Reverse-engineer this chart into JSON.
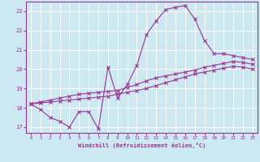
{
  "xlabel": "Windchill (Refroidissement éolien,°C)",
  "background_color": "#cce8f0",
  "grid_color": "#ffffff",
  "line_color": "#993399",
  "xlim": [
    -0.5,
    23.5
  ],
  "ylim": [
    16.7,
    23.5
  ],
  "yticks": [
    17,
    18,
    19,
    20,
    21,
    22,
    23
  ],
  "xticks": [
    0,
    1,
    2,
    3,
    4,
    5,
    6,
    7,
    8,
    9,
    10,
    11,
    12,
    13,
    14,
    15,
    16,
    17,
    18,
    19,
    20,
    21,
    22,
    23
  ],
  "curve1_x": [
    0,
    1,
    2,
    3,
    4,
    5,
    6,
    7,
    8,
    9,
    10,
    11,
    12,
    13,
    14,
    15,
    16,
    17,
    18,
    19,
    20,
    21,
    22,
    23
  ],
  "curve1_y": [
    18.2,
    17.9,
    17.5,
    17.3,
    17.0,
    17.8,
    17.8,
    16.9,
    20.1,
    18.5,
    19.2,
    20.2,
    21.8,
    22.5,
    23.1,
    23.2,
    23.3,
    22.6,
    21.5,
    20.8,
    20.8,
    20.7,
    20.6,
    20.5
  ],
  "curve2_x": [
    0,
    1,
    2,
    3,
    4,
    5,
    6,
    7,
    8,
    9,
    10,
    11,
    12,
    13,
    14,
    15,
    16,
    17,
    18,
    19,
    20,
    21,
    22,
    23
  ],
  "curve2_y": [
    18.2,
    18.25,
    18.3,
    18.35,
    18.4,
    18.45,
    18.5,
    18.55,
    18.6,
    18.7,
    18.8,
    18.9,
    19.0,
    19.15,
    19.3,
    19.45,
    19.6,
    19.75,
    19.85,
    19.95,
    20.05,
    20.15,
    20.1,
    20.0
  ],
  "curve3_x": [
    0,
    1,
    2,
    3,
    4,
    5,
    6,
    7,
    8,
    9,
    10,
    11,
    12,
    13,
    14,
    15,
    16,
    17,
    18,
    19,
    20,
    21,
    22,
    23
  ],
  "curve3_y": [
    18.2,
    18.3,
    18.4,
    18.5,
    18.6,
    18.7,
    18.75,
    18.8,
    18.85,
    18.9,
    19.05,
    19.2,
    19.4,
    19.55,
    19.65,
    19.75,
    19.85,
    19.95,
    20.1,
    20.2,
    20.3,
    20.4,
    20.35,
    20.25
  ]
}
